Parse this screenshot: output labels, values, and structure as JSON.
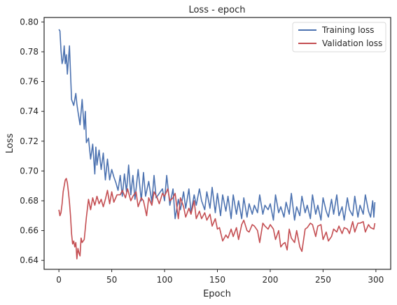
{
  "chart_data": {
    "type": "line",
    "title": "Loss - epoch",
    "xlabel": "Epoch",
    "ylabel": "Loss",
    "xlim": [
      -14,
      314
    ],
    "ylim": [
      0.634,
      0.803
    ],
    "xticks": [
      0,
      50,
      100,
      150,
      200,
      250,
      300
    ],
    "yticks": [
      0.64,
      0.66,
      0.68,
      0.7,
      0.72,
      0.74,
      0.76,
      0.78,
      0.8
    ],
    "ytick_labels": [
      "0.64",
      "0.66",
      "0.68",
      "0.70",
      "0.72",
      "0.74",
      "0.76",
      "0.78",
      "0.80"
    ],
    "grid": false,
    "legend_position": "top-right",
    "series": [
      {
        "name": "Training loss",
        "color": "#4c72b0",
        "x": [
          0,
          1,
          2,
          3,
          4,
          5,
          6,
          7,
          8,
          10,
          12,
          14,
          16,
          17,
          18,
          20,
          22,
          24,
          25,
          26,
          28,
          30,
          32,
          34,
          35,
          36,
          38,
          40,
          42,
          44,
          46,
          48,
          50,
          52,
          54,
          56,
          58,
          60,
          62,
          64,
          66,
          68,
          70,
          72,
          75,
          78,
          80,
          82,
          85,
          88,
          90,
          92,
          95,
          98,
          100,
          102,
          105,
          108,
          110,
          113,
          115,
          118,
          120,
          123,
          125,
          128,
          130,
          133,
          135,
          138,
          140,
          143,
          145,
          148,
          150,
          153,
          155,
          158,
          160,
          163,
          165,
          168,
          170,
          173,
          175,
          178,
          180,
          183,
          185,
          188,
          190,
          193,
          195,
          198,
          200,
          203,
          205,
          208,
          210,
          213,
          215,
          218,
          220,
          223,
          225,
          228,
          230,
          233,
          235,
          238,
          240,
          243,
          245,
          248,
          250,
          253,
          255,
          258,
          260,
          263,
          265,
          268,
          270,
          273,
          275,
          278,
          280,
          283,
          285,
          288,
          290,
          293,
          295,
          297,
          298,
          299
        ],
        "values": [
          0.795,
          0.794,
          0.781,
          0.772,
          0.775,
          0.784,
          0.772,
          0.778,
          0.765,
          0.784,
          0.748,
          0.744,
          0.752,
          0.745,
          0.74,
          0.731,
          0.748,
          0.728,
          0.74,
          0.719,
          0.722,
          0.708,
          0.718,
          0.698,
          0.716,
          0.704,
          0.714,
          0.701,
          0.712,
          0.694,
          0.708,
          0.694,
          0.701,
          0.696,
          0.692,
          0.687,
          0.697,
          0.683,
          0.698,
          0.686,
          0.704,
          0.684,
          0.697,
          0.681,
          0.701,
          0.68,
          0.699,
          0.683,
          0.693,
          0.679,
          0.697,
          0.682,
          0.685,
          0.688,
          0.68,
          0.697,
          0.677,
          0.688,
          0.668,
          0.681,
          0.674,
          0.686,
          0.675,
          0.688,
          0.672,
          0.684,
          0.677,
          0.688,
          0.68,
          0.674,
          0.686,
          0.675,
          0.689,
          0.672,
          0.685,
          0.67,
          0.684,
          0.673,
          0.683,
          0.668,
          0.684,
          0.671,
          0.68,
          0.668,
          0.682,
          0.669,
          0.678,
          0.671,
          0.677,
          0.672,
          0.684,
          0.671,
          0.677,
          0.674,
          0.678,
          0.667,
          0.684,
          0.672,
          0.676,
          0.669,
          0.679,
          0.671,
          0.685,
          0.667,
          0.676,
          0.67,
          0.683,
          0.672,
          0.677,
          0.668,
          0.684,
          0.671,
          0.677,
          0.667,
          0.682,
          0.673,
          0.669,
          0.681,
          0.671,
          0.684,
          0.67,
          0.676,
          0.667,
          0.682,
          0.674,
          0.67,
          0.683,
          0.669,
          0.677,
          0.671,
          0.684,
          0.673,
          0.669,
          0.68,
          0.669,
          0.679
        ]
      },
      {
        "name": "Validation loss",
        "color": "#c44e52",
        "x": [
          0,
          1,
          2,
          3,
          4,
          5,
          6,
          7,
          8,
          9,
          10,
          11,
          12,
          13,
          14,
          15,
          16,
          17,
          18,
          19,
          20,
          21,
          22,
          24,
          26,
          28,
          30,
          32,
          34,
          36,
          38,
          40,
          42,
          44,
          46,
          48,
          50,
          52,
          55,
          58,
          60,
          63,
          65,
          68,
          70,
          73,
          75,
          78,
          80,
          83,
          85,
          88,
          90,
          93,
          95,
          98,
          100,
          103,
          105,
          108,
          110,
          113,
          115,
          118,
          120,
          123,
          125,
          128,
          130,
          133,
          135,
          138,
          140,
          143,
          145,
          148,
          150,
          152,
          155,
          158,
          160,
          163,
          165,
          168,
          170,
          173,
          175,
          178,
          180,
          183,
          185,
          188,
          190,
          193,
          195,
          198,
          200,
          203,
          205,
          208,
          210,
          212,
          214,
          216,
          218,
          220,
          223,
          225,
          228,
          230,
          233,
          235,
          238,
          240,
          243,
          245,
          248,
          250,
          253,
          255,
          258,
          260,
          263,
          265,
          268,
          270,
          273,
          275,
          278,
          280,
          283,
          285,
          288,
          290,
          293,
          295,
          298,
          299
        ],
        "values": [
          0.674,
          0.67,
          0.672,
          0.678,
          0.686,
          0.69,
          0.694,
          0.695,
          0.692,
          0.686,
          0.679,
          0.67,
          0.658,
          0.651,
          0.653,
          0.649,
          0.652,
          0.641,
          0.648,
          0.645,
          0.643,
          0.655,
          0.652,
          0.654,
          0.669,
          0.681,
          0.674,
          0.682,
          0.677,
          0.683,
          0.678,
          0.681,
          0.676,
          0.681,
          0.687,
          0.678,
          0.686,
          0.679,
          0.684,
          0.684,
          0.687,
          0.682,
          0.688,
          0.68,
          0.683,
          0.686,
          0.676,
          0.682,
          0.68,
          0.67,
          0.682,
          0.677,
          0.686,
          0.682,
          0.678,
          0.685,
          0.683,
          0.688,
          0.68,
          0.682,
          0.685,
          0.668,
          0.682,
          0.676,
          0.669,
          0.675,
          0.671,
          0.68,
          0.668,
          0.673,
          0.668,
          0.672,
          0.667,
          0.671,
          0.663,
          0.668,
          0.661,
          0.662,
          0.653,
          0.657,
          0.655,
          0.661,
          0.656,
          0.662,
          0.654,
          0.664,
          0.667,
          0.66,
          0.659,
          0.664,
          0.663,
          0.66,
          0.652,
          0.665,
          0.663,
          0.661,
          0.664,
          0.661,
          0.654,
          0.66,
          0.649,
          0.651,
          0.652,
          0.647,
          0.661,
          0.655,
          0.652,
          0.66,
          0.649,
          0.646,
          0.661,
          0.662,
          0.665,
          0.664,
          0.656,
          0.663,
          0.664,
          0.654,
          0.659,
          0.653,
          0.656,
          0.661,
          0.659,
          0.663,
          0.658,
          0.662,
          0.661,
          0.658,
          0.666,
          0.659,
          0.665,
          0.665,
          0.666,
          0.659,
          0.664,
          0.662,
          0.661,
          0.665
        ]
      }
    ]
  }
}
